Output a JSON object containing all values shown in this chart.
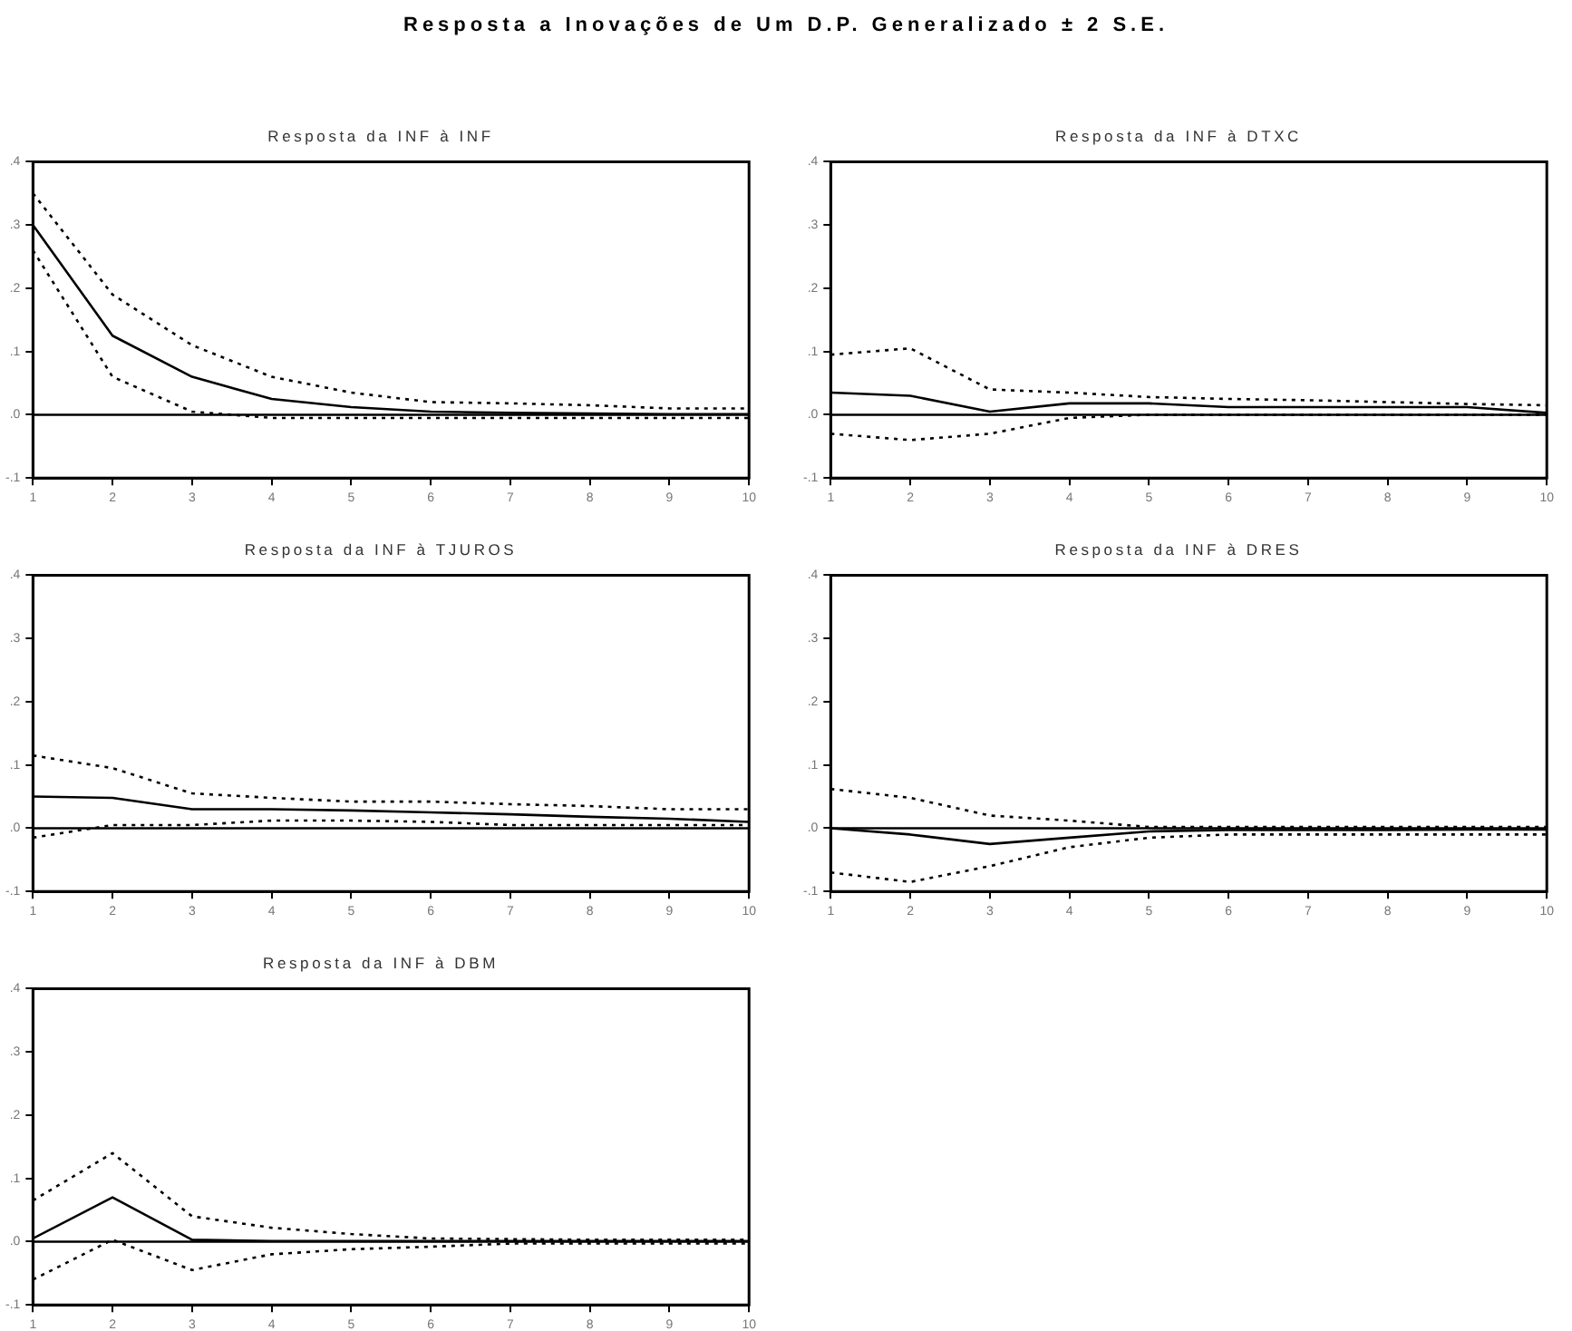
{
  "chart_data": [
    {
      "type": "line",
      "title": "Resposta a Inovações de Um D.P. Generalizado ± 2 S.E.",
      "subtitle": "Resposta da INF à INF",
      "x": [
        1,
        2,
        3,
        4,
        5,
        6,
        7,
        8,
        9,
        10
      ],
      "xlim": [
        1,
        10
      ],
      "xticks": [
        1,
        2,
        3,
        4,
        5,
        6,
        7,
        8,
        9,
        10
      ],
      "ylim": [
        -0.1,
        0.4
      ],
      "yticks": [
        {
          "value": -0.1,
          "label": "-.1"
        },
        {
          "value": 0,
          "label": ".0"
        },
        {
          "value": 0.1,
          "label": ".1"
        },
        {
          "value": 0.2,
          "label": ".2"
        },
        {
          "value": 0.3,
          "label": ".3"
        },
        {
          "value": 0.4,
          "label": ".4"
        }
      ],
      "grid": false,
      "marker": "none",
      "ref_lines": [
        {
          "axis": "y",
          "value": 0,
          "color": "#000000"
        }
      ],
      "series": [
        {
          "color": "#000000",
          "line_style": "solid",
          "values": [
            0.3,
            0.125,
            0.06,
            0.025,
            0.012,
            0.005,
            0.003,
            0.002,
            0.001,
            0.001
          ]
        },
        {
          "color": "#000000",
          "line_style": "dotted",
          "values": [
            0.35,
            0.19,
            0.11,
            0.06,
            0.035,
            0.02,
            0.018,
            0.015,
            0.01,
            0.01
          ]
        },
        {
          "color": "#000000",
          "line_style": "dotted",
          "values": [
            0.26,
            0.06,
            0.005,
            -0.005,
            -0.005,
            -0.005,
            -0.005,
            -0.005,
            -0.005,
            -0.005
          ]
        }
      ]
    },
    {
      "type": "line",
      "title": "Resposta da INF à DTXC",
      "x": [
        1,
        2,
        3,
        4,
        5,
        6,
        7,
        8,
        9,
        10
      ],
      "xlim": [
        1,
        10
      ],
      "xticks": [
        1,
        2,
        3,
        4,
        5,
        6,
        7,
        8,
        9,
        10
      ],
      "ylim": [
        -0.1,
        0.4
      ],
      "yticks": [
        {
          "value": -0.1,
          "label": "-.1"
        },
        {
          "value": 0,
          "label": ".0"
        },
        {
          "value": 0.1,
          "label": ".1"
        },
        {
          "value": 0.2,
          "label": ".2"
        },
        {
          "value": 0.3,
          "label": ".3"
        },
        {
          "value": 0.4,
          "label": ".4"
        }
      ],
      "grid": false,
      "marker": "none",
      "ref_lines": [
        {
          "axis": "y",
          "value": 0,
          "color": "#000000"
        }
      ],
      "series": [
        {
          "color": "#000000",
          "line_style": "solid",
          "values": [
            0.035,
            0.03,
            0.005,
            0.018,
            0.018,
            0.012,
            0.012,
            0.012,
            0.012,
            0.003
          ]
        },
        {
          "color": "#000000",
          "line_style": "dotted",
          "values": [
            0.095,
            0.105,
            0.04,
            0.035,
            0.028,
            0.025,
            0.023,
            0.02,
            0.017,
            0.015
          ]
        },
        {
          "color": "#000000",
          "line_style": "dotted",
          "values": [
            -0.03,
            -0.04,
            -0.03,
            -0.005,
            0,
            0,
            0,
            0,
            0,
            0
          ]
        }
      ]
    },
    {
      "type": "line",
      "title": "Resposta da INF à TJUROS",
      "x": [
        1,
        2,
        3,
        4,
        5,
        6,
        7,
        8,
        9,
        10
      ],
      "xlim": [
        1,
        10
      ],
      "xticks": [
        1,
        2,
        3,
        4,
        5,
        6,
        7,
        8,
        9,
        10
      ],
      "ylim": [
        -0.1,
        0.4
      ],
      "yticks": [
        {
          "value": -0.1,
          "label": "-.1"
        },
        {
          "value": 0,
          "label": ".0"
        },
        {
          "value": 0.1,
          "label": ".1"
        },
        {
          "value": 0.2,
          "label": ".2"
        },
        {
          "value": 0.3,
          "label": ".3"
        },
        {
          "value": 0.4,
          "label": ".4"
        }
      ],
      "grid": false,
      "marker": "none",
      "ref_lines": [
        {
          "axis": "y",
          "value": 0,
          "color": "#000000"
        }
      ],
      "series": [
        {
          "color": "#000000",
          "line_style": "solid",
          "values": [
            0.05,
            0.048,
            0.03,
            0.03,
            0.028,
            0.025,
            0.022,
            0.018,
            0.015,
            0.01
          ]
        },
        {
          "color": "#000000",
          "line_style": "dotted",
          "values": [
            0.115,
            0.095,
            0.055,
            0.048,
            0.042,
            0.042,
            0.038,
            0.035,
            0.03,
            0.03
          ]
        },
        {
          "color": "#000000",
          "line_style": "dotted",
          "values": [
            -0.015,
            0.005,
            0.005,
            0.012,
            0.012,
            0.01,
            0.005,
            0.005,
            0.005,
            0.005
          ]
        }
      ]
    },
    {
      "type": "line",
      "title": "Resposta da INF à DRES",
      "x": [
        1,
        2,
        3,
        4,
        5,
        6,
        7,
        8,
        9,
        10
      ],
      "xlim": [
        1,
        10
      ],
      "xticks": [
        1,
        2,
        3,
        4,
        5,
        6,
        7,
        8,
        9,
        10
      ],
      "ylim": [
        -0.1,
        0.4
      ],
      "yticks": [
        {
          "value": -0.1,
          "label": "-.1"
        },
        {
          "value": 0,
          "label": ".0"
        },
        {
          "value": 0.1,
          "label": ".1"
        },
        {
          "value": 0.2,
          "label": ".2"
        },
        {
          "value": 0.3,
          "label": ".3"
        },
        {
          "value": 0.4,
          "label": ".4"
        }
      ],
      "grid": false,
      "marker": "none",
      "ref_lines": [
        {
          "axis": "y",
          "value": 0,
          "color": "#000000"
        }
      ],
      "series": [
        {
          "color": "#000000",
          "line_style": "solid",
          "values": [
            0,
            -0.01,
            -0.025,
            -0.015,
            -0.005,
            -0.003,
            -0.003,
            -0.003,
            -0.002,
            -0.002
          ]
        },
        {
          "color": "#000000",
          "line_style": "dotted",
          "values": [
            0.062,
            0.048,
            0.02,
            0.012,
            0.002,
            0.002,
            0.002,
            0.002,
            0.002,
            0.002
          ]
        },
        {
          "color": "#000000",
          "line_style": "dotted",
          "values": [
            -0.07,
            -0.085,
            -0.06,
            -0.03,
            -0.015,
            -0.01,
            -0.01,
            -0.01,
            -0.01,
            -0.01
          ]
        }
      ]
    },
    {
      "type": "line",
      "title": "Resposta da INF à DBM",
      "x": [
        1,
        2,
        3,
        4,
        5,
        6,
        7,
        8,
        9,
        10
      ],
      "xlim": [
        1,
        10
      ],
      "xticks": [
        1,
        2,
        3,
        4,
        5,
        6,
        7,
        8,
        9,
        10
      ],
      "ylim": [
        -0.1,
        0.4
      ],
      "yticks": [
        {
          "value": -0.1,
          "label": "-.1"
        },
        {
          "value": 0,
          "label": ".0"
        },
        {
          "value": 0.1,
          "label": ".1"
        },
        {
          "value": 0.2,
          "label": ".2"
        },
        {
          "value": 0.3,
          "label": ".3"
        },
        {
          "value": 0.4,
          "label": ".4"
        }
      ],
      "grid": false,
      "marker": "none",
      "ref_lines": [
        {
          "axis": "y",
          "value": 0,
          "color": "#000000"
        }
      ],
      "series": [
        {
          "color": "#000000",
          "line_style": "solid",
          "values": [
            0.005,
            0.07,
            0.003,
            0.001,
            0.001,
            0.001,
            0.001,
            0.001,
            0.001,
            0.001
          ]
        },
        {
          "color": "#000000",
          "line_style": "dotted",
          "values": [
            0.065,
            0.14,
            0.04,
            0.022,
            0.012,
            0.005,
            0.004,
            0.003,
            0.003,
            0.003
          ]
        },
        {
          "color": "#000000",
          "line_style": "dotted",
          "values": [
            -0.06,
            0.003,
            -0.045,
            -0.02,
            -0.012,
            -0.008,
            -0.003,
            -0.003,
            -0.003,
            -0.003
          ]
        }
      ]
    }
  ]
}
